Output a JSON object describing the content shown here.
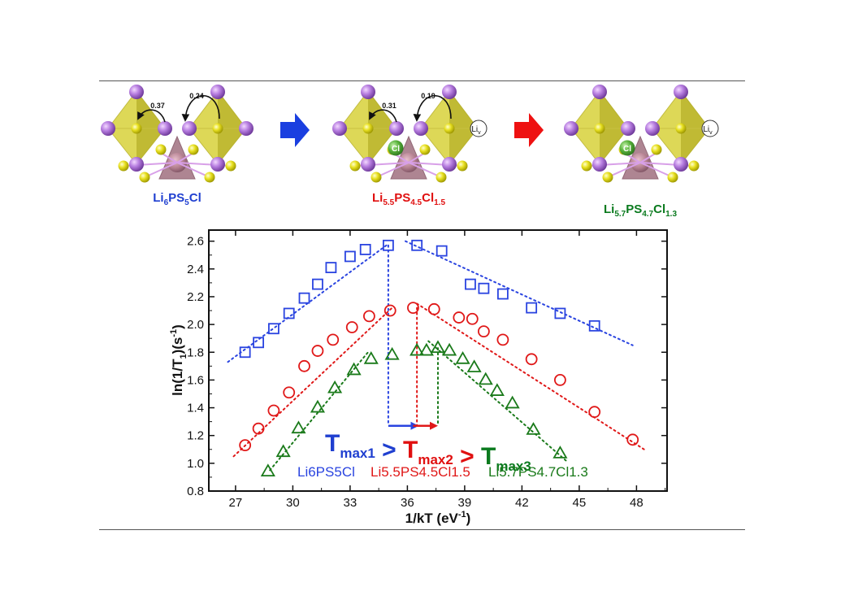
{
  "structures": [
    {
      "formula": {
        "base": "Li",
        "parts": [
          [
            "6",
            "PS"
          ],
          [
            "5",
            "Cl"
          ]
        ]
      },
      "color": "#1f3fd0",
      "hops": [
        "0.37",
        "0.24"
      ],
      "has_cl": false,
      "has_vac": false
    },
    {
      "formula": {
        "base": "Li",
        "parts": [
          [
            "5.5",
            "PS"
          ],
          [
            "4.5",
            "Cl"
          ],
          [
            "1.5",
            ""
          ]
        ]
      },
      "color": "#e01010",
      "hops": [
        "0.31",
        "0.19"
      ],
      "has_cl": true,
      "has_vac": true
    },
    {
      "formula": {
        "base": "Li",
        "parts": [
          [
            "5.7",
            "PS"
          ],
          [
            "4.7",
            "Cl"
          ],
          [
            "1.3",
            ""
          ]
        ]
      },
      "color": "#0a7a1e",
      "hops": [],
      "has_cl": true,
      "has_vac": true
    }
  ],
  "atom_labels": {
    "cl": "Cl",
    "vac_base": "Li",
    "vac_sub": "v"
  },
  "arrows": {
    "first_color": "#1a3fe0",
    "second_color": "#ee1111"
  },
  "chart_data": {
    "type": "scatter",
    "xlabel": "1/kT (eV",
    "xlabel_sup": "-1",
    "xlabel_end": ")",
    "ylabel": "ln(1/T",
    "ylabel_sub": "1",
    "ylabel_mid": ")(s",
    "ylabel_sup": "-1",
    "ylabel_end": ")",
    "xlim": [
      25.6,
      49.6
    ],
    "ylim": [
      0.8,
      2.68
    ],
    "xticks": [
      27,
      30,
      33,
      36,
      39,
      42,
      45,
      48
    ],
    "yticks": [
      0.8,
      1.0,
      1.2,
      1.4,
      1.6,
      1.8,
      2.0,
      2.2,
      2.4,
      2.6
    ],
    "series": [
      {
        "name": "Li6PS5Cl",
        "color": "#2a44e0",
        "marker": "square",
        "points": [
          [
            27.5,
            1.8
          ],
          [
            28.2,
            1.87
          ],
          [
            29.0,
            1.97
          ],
          [
            29.8,
            2.08
          ],
          [
            30.6,
            2.19
          ],
          [
            31.3,
            2.29
          ],
          [
            32.0,
            2.41
          ],
          [
            33.0,
            2.49
          ],
          [
            33.8,
            2.54
          ],
          [
            35.0,
            2.57
          ],
          [
            36.5,
            2.57
          ],
          [
            37.8,
            2.53
          ],
          [
            39.3,
            2.29
          ],
          [
            40.0,
            2.26
          ],
          [
            41.0,
            2.22
          ],
          [
            42.5,
            2.12
          ],
          [
            44.0,
            2.08
          ],
          [
            45.8,
            1.99
          ]
        ],
        "fit_rise": [
          [
            26.6,
            1.73
          ],
          [
            35.0,
            2.58
          ]
        ],
        "fit_fall": [
          [
            35.9,
            2.6
          ],
          [
            47.8,
            1.85
          ]
        ]
      },
      {
        "name": "Li5.5PS4.5Cl1.5",
        "color": "#e01818",
        "marker": "circle",
        "points": [
          [
            27.5,
            1.13
          ],
          [
            28.2,
            1.25
          ],
          [
            29.0,
            1.38
          ],
          [
            29.8,
            1.51
          ],
          [
            30.6,
            1.7
          ],
          [
            31.3,
            1.81
          ],
          [
            32.1,
            1.89
          ],
          [
            33.1,
            1.98
          ],
          [
            34.0,
            2.06
          ],
          [
            35.1,
            2.1
          ],
          [
            36.3,
            2.12
          ],
          [
            37.4,
            2.11
          ],
          [
            38.7,
            2.05
          ],
          [
            39.4,
            2.04
          ],
          [
            40.0,
            1.95
          ],
          [
            41.0,
            1.89
          ],
          [
            42.5,
            1.75
          ],
          [
            44.0,
            1.6
          ],
          [
            45.8,
            1.37
          ],
          [
            47.8,
            1.17
          ]
        ],
        "fit_rise": [
          [
            26.9,
            1.05
          ],
          [
            35.2,
            2.12
          ]
        ],
        "fit_fall": [
          [
            36.5,
            2.15
          ],
          [
            48.4,
            1.1
          ]
        ]
      },
      {
        "name": "Li5.7PS4.7Cl1.3",
        "color": "#1a7a1a",
        "marker": "triangle",
        "points": [
          [
            28.7,
            0.94
          ],
          [
            29.5,
            1.08
          ],
          [
            30.3,
            1.25
          ],
          [
            31.3,
            1.4
          ],
          [
            32.2,
            1.54
          ],
          [
            33.2,
            1.67
          ],
          [
            34.1,
            1.75
          ],
          [
            35.2,
            1.78
          ],
          [
            36.5,
            1.81
          ],
          [
            37.0,
            1.81
          ],
          [
            37.6,
            1.83
          ],
          [
            38.2,
            1.81
          ],
          [
            38.9,
            1.75
          ],
          [
            39.5,
            1.69
          ],
          [
            40.1,
            1.6
          ],
          [
            40.7,
            1.52
          ],
          [
            41.5,
            1.43
          ],
          [
            42.6,
            1.24
          ],
          [
            44.0,
            1.07
          ]
        ],
        "fit_rise": [
          [
            28.8,
            0.95
          ],
          [
            34.0,
            1.81
          ]
        ],
        "fit_fall": [
          [
            37.1,
            1.88
          ],
          [
            44.3,
            1.02
          ]
        ]
      }
    ],
    "tmax_markers": [
      {
        "x": 35.0,
        "y": 2.57,
        "color": "#2a44e0"
      },
      {
        "x": 36.5,
        "y": 2.12,
        "color": "#e01818"
      },
      {
        "x": 37.6,
        "y": 1.83,
        "color": "#1a7a1a"
      }
    ],
    "shift_arrows": [
      {
        "from": 35.0,
        "to": 36.6,
        "y": 1.27,
        "color": "#2a44e0"
      },
      {
        "from": 36.3,
        "to": 37.6,
        "y": 1.27,
        "color": "#e01818"
      }
    ],
    "tmax_text": [
      {
        "main": "T",
        "sub": "max1",
        "color": "#1f3fd0"
      },
      {
        "main": " > ",
        "sub": "",
        "color": "#1f3fd0"
      },
      {
        "main": "T",
        "sub": "max2",
        "color": "#e01010"
      },
      {
        "main": " > ",
        "sub": "",
        "color": "#e01010"
      },
      {
        "main": "T",
        "sub": "max3",
        "color": "#0a7a1e"
      }
    ],
    "legend": [
      "Li6PS5Cl",
      "Li5.5PS4.5Cl1.5",
      "Li5.7PS4.7Cl1.3"
    ]
  }
}
